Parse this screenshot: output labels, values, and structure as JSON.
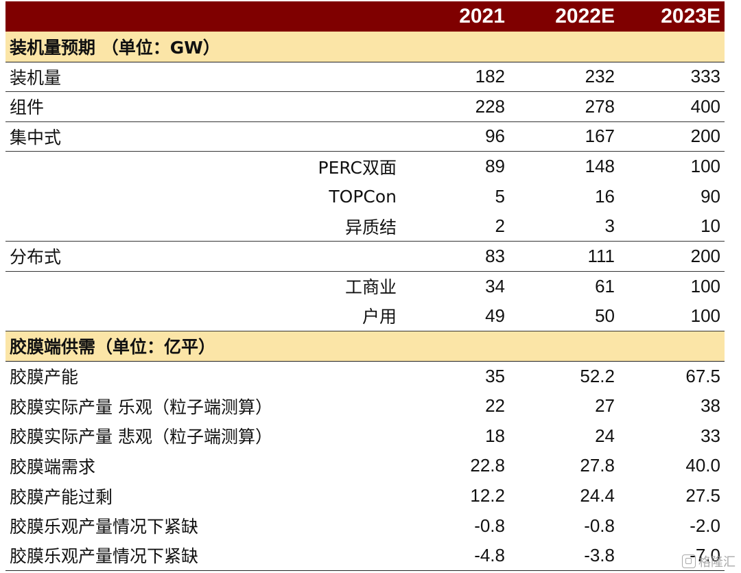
{
  "header": {
    "years": [
      "2021",
      "2022E",
      "2023E"
    ]
  },
  "sections": [
    {
      "title": "装机量预期 （单位：GW）",
      "rows": [
        {
          "label": "装机量",
          "indent": false,
          "values": [
            "182",
            "232",
            "333"
          ]
        },
        {
          "label": "组件",
          "indent": false,
          "values": [
            "228",
            "278",
            "400"
          ]
        },
        {
          "label": "集中式",
          "indent": false,
          "values": [
            "96",
            "167",
            "200"
          ]
        },
        {
          "label": "PERC双面",
          "indent": true,
          "values": [
            "89",
            "148",
            "100"
          ]
        },
        {
          "label": "TOPCon",
          "indent": true,
          "values": [
            "5",
            "16",
            "90"
          ]
        },
        {
          "label": "异质结",
          "indent": true,
          "values": [
            "2",
            "3",
            "10"
          ]
        },
        {
          "label": "分布式",
          "indent": false,
          "values": [
            "83",
            "111",
            "200"
          ]
        },
        {
          "label": "工商业",
          "indent": true,
          "values": [
            "34",
            "61",
            "100"
          ]
        },
        {
          "label": "户用",
          "indent": true,
          "values": [
            "49",
            "50",
            "100"
          ]
        }
      ]
    },
    {
      "title": "胶膜端供需（单位：亿平）",
      "rows": [
        {
          "label": "胶膜产能",
          "indent": false,
          "values": [
            "35",
            "52.2",
            "67.5"
          ]
        },
        {
          "label": "胶膜实际产量 乐观（粒子端测算）",
          "indent": false,
          "values": [
            "22",
            "27",
            "38"
          ]
        },
        {
          "label": "胶膜实际产量 悲观（粒子端测算）",
          "indent": false,
          "values": [
            "18",
            "24",
            "33"
          ]
        },
        {
          "label": "胶膜端需求",
          "indent": false,
          "values": [
            "22.8",
            "27.8",
            "40.0"
          ]
        },
        {
          "label": "胶膜产能过剩",
          "indent": false,
          "values": [
            "12.2",
            "24.4",
            "27.5"
          ]
        },
        {
          "label": "胶膜乐观产量情况下紧缺",
          "indent": false,
          "values": [
            "-0.8",
            "-0.8",
            "-2.0"
          ]
        },
        {
          "label": "胶膜乐观产量情况下紧缺",
          "indent": false,
          "values": [
            "-4.8",
            "-3.8",
            "-7.0"
          ]
        }
      ]
    }
  ],
  "watermark": {
    "text": "格隆汇",
    "icon": "gelonghui-logo-icon"
  },
  "colors": {
    "header_bg": "#7f0000",
    "section_bg": "#fbe5a7"
  }
}
